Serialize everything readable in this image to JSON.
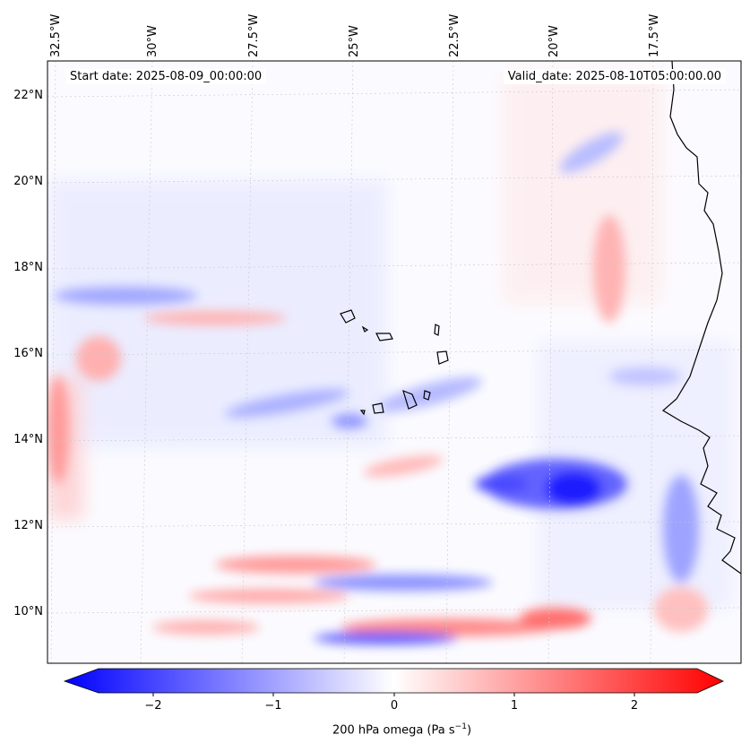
{
  "header": {
    "start_date": "Start date: 2025-08-09_00:00:00",
    "valid_date": "Valid_date: 2025-08-10T05:00:00.00"
  },
  "map": {
    "lon_labels": [
      "32.5°W",
      "30°W",
      "27.5°W",
      "25°W",
      "22.5°W",
      "20°W",
      "17.5°W"
    ],
    "lat_labels": [
      "22°N",
      "20°N",
      "18°N",
      "16°N",
      "14°N",
      "12°N",
      "10°N"
    ],
    "field": "200 hPa omega",
    "colormap": "bwr",
    "colors": {
      "negative": "#0000ff",
      "zero": "#ffffff",
      "positive": "#ff0000",
      "coastline": "#000000"
    }
  },
  "colorbar": {
    "ticks": [
      "−2",
      "−1",
      "0",
      "1",
      "2"
    ],
    "label_text": "200 hPa omega (Pa s",
    "label_sup": "−1",
    "label_end": ")",
    "range": [
      -2.6,
      2.6
    ],
    "extend": "both"
  }
}
